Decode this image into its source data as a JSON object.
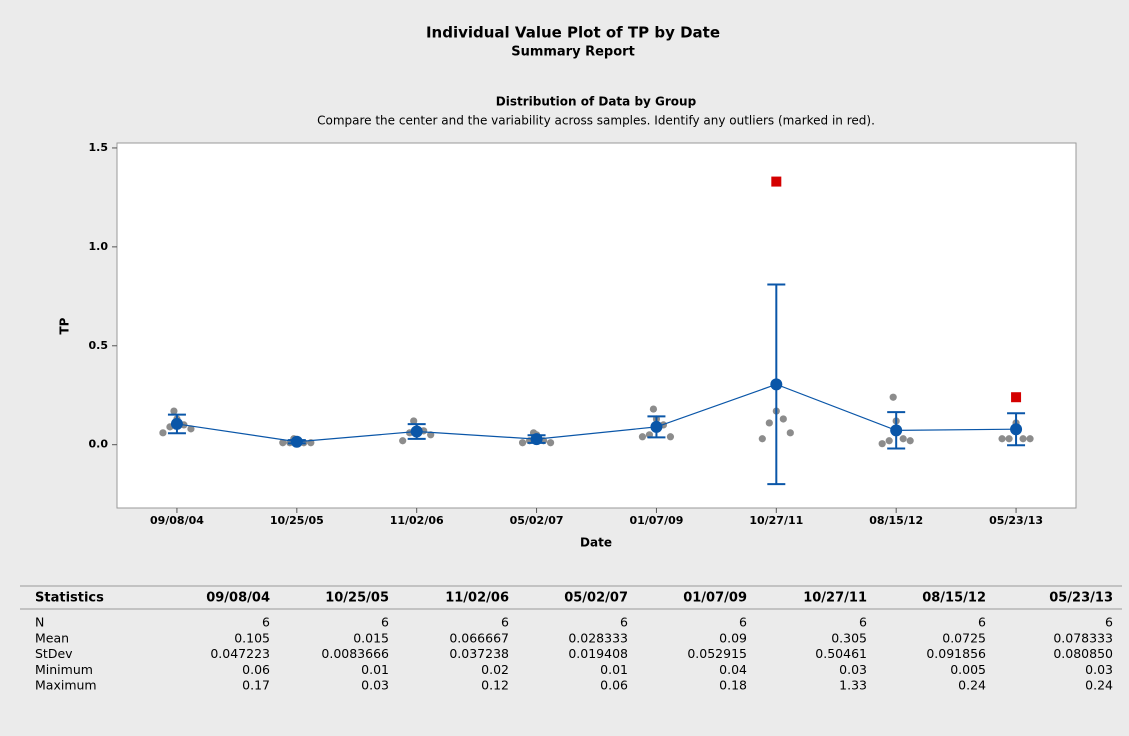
{
  "chart_data": {
    "type": "individual_value",
    "title": "Individual Value Plot of TP by Date",
    "subtitle": "Summary Report",
    "panel_title": "Distribution of Data by Group",
    "panel_subtitle": "Compare the center and the variability across samples. Identify any outliers (marked in red).",
    "x_label": "Date",
    "y_label": "TP",
    "categories": [
      "09/08/04",
      "10/25/05",
      "11/02/06",
      "05/02/07",
      "01/07/09",
      "10/27/11",
      "08/15/12",
      "05/23/13"
    ],
    "points": [
      [
        0.06,
        0.08,
        0.09,
        0.1,
        0.13,
        0.17
      ],
      [
        0.01,
        0.01,
        0.01,
        0.01,
        0.02,
        0.03
      ],
      [
        0.02,
        0.05,
        0.06,
        0.07,
        0.08,
        0.12
      ],
      [
        0.01,
        0.01,
        0.02,
        0.02,
        0.05,
        0.06
      ],
      [
        0.04,
        0.04,
        0.05,
        0.1,
        0.13,
        0.18
      ],
      [
        0.03,
        0.06,
        0.11,
        0.13,
        0.17
      ],
      [
        0.005,
        0.02,
        0.02,
        0.03,
        0.12,
        0.24
      ],
      [
        0.03,
        0.03,
        0.03,
        0.03,
        0.11
      ]
    ],
    "outliers": [
      [],
      [],
      [],
      [],
      [],
      [
        1.33
      ],
      [],
      [
        0.24
      ]
    ],
    "means": [
      0.105,
      0.015,
      0.066667,
      0.028333,
      0.09,
      0.305,
      0.0725,
      0.078333
    ],
    "errors": [
      0.047223,
      0.0083666,
      0.037238,
      0.019408,
      0.052915,
      0.50461,
      0.091856,
      0.08085
    ],
    "point_color": "#8c8c8c",
    "outlier_color": "#d40000",
    "mean_color": "#0a56a8",
    "ylim": [
      -0.32,
      1.525
    ],
    "yticks": [
      {
        "value": 0,
        "label": "0.0"
      },
      {
        "value": 0.5,
        "label": "0.5"
      },
      {
        "value": 1,
        "label": "1.0"
      },
      {
        "value": 1.5,
        "label": "1.5"
      }
    ]
  },
  "table": {
    "header": [
      "Statistics",
      "09/08/04",
      "10/25/05",
      "11/02/06",
      "05/02/07",
      "01/07/09",
      "10/27/11",
      "08/15/12",
      "05/23/13"
    ],
    "rows": [
      [
        "N",
        "6",
        "6",
        "6",
        "6",
        "6",
        "6",
        "6",
        "6"
      ],
      [
        "Mean",
        "0.105",
        "0.015",
        "0.066667",
        "0.028333",
        "0.09",
        "0.305",
        "0.0725",
        "0.078333"
      ],
      [
        "StDev",
        "0.047223",
        "0.0083666",
        "0.037238",
        "0.019408",
        "0.052915",
        "0.50461",
        "0.091856",
        "0.080850"
      ],
      [
        "Minimum",
        "0.06",
        "0.01",
        "0.02",
        "0.01",
        "0.04",
        "0.03",
        "0.005",
        "0.03"
      ],
      [
        "Maximum",
        "0.17",
        "0.03",
        "0.12",
        "0.06",
        "0.18",
        "1.33",
        "0.24",
        "0.24"
      ]
    ]
  }
}
